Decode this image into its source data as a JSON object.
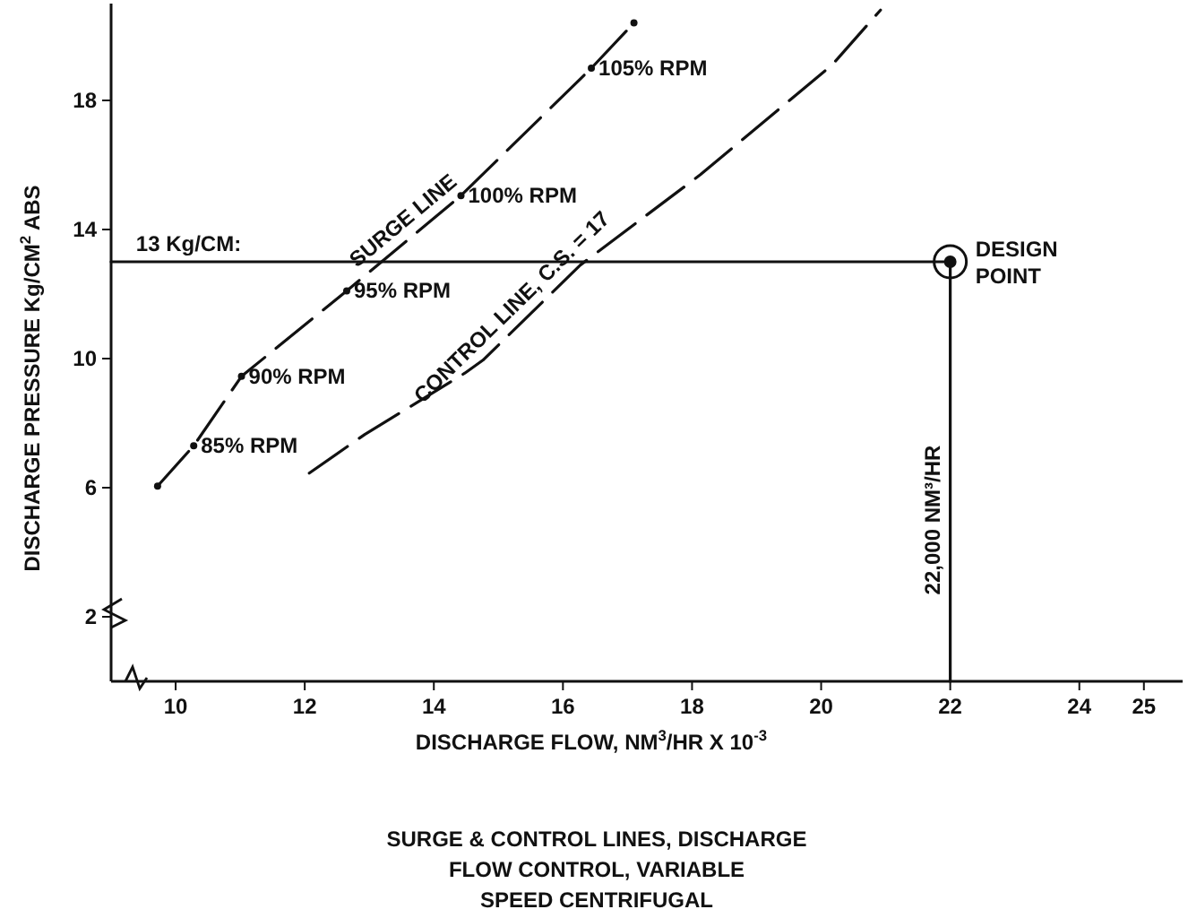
{
  "chart_data": {
    "type": "line",
    "title": "SURGE & CONTROL LINES, DISCHARGE\nFLOW CONTROL, VARIABLE\nSPEED CENTRIFUGAL",
    "xlabel": "DISCHARGE FLOW, NM$^{3}$/HR X 10$^{-3}$",
    "ylabel": "DISCHARGE PRESSURE Kg/CM$^{2}$ ABS",
    "xlim": [
      9,
      25.6
    ],
    "ylim": [
      0,
      21
    ],
    "xticks": [
      10,
      12,
      14,
      16,
      18,
      20,
      22,
      24,
      25
    ],
    "yticks": [
      2,
      6,
      10,
      14,
      18
    ],
    "grid": false,
    "series": [
      {
        "color": "#111111",
        "line_style": "dashed",
        "marker": "circle",
        "x": [
          9.72,
          10.28,
          11.02,
          12.65,
          14.42,
          16.44,
          17.1
        ],
        "values": [
          6.05,
          7.3,
          9.45,
          12.1,
          15.05,
          19.0,
          20.4
        ]
      },
      {
        "color": "#111111",
        "line_style": "dashed",
        "marker": "none",
        "x": [
          12.07,
          12.93,
          14.48,
          14.76,
          16.27,
          18.13,
          20.17,
          20.92
        ],
        "values": [
          6.45,
          7.65,
          9.55,
          9.95,
          12.9,
          15.7,
          19.1,
          20.8
        ]
      },
      {
        "color": "#111111",
        "line_style": "solid",
        "marker": "none",
        "x": [
          9,
          22,
          22
        ],
        "values": [
          13,
          13,
          0
        ]
      },
      {
        "type": "scatter",
        "color": "#111111",
        "marker": "circle",
        "x": [
          22
        ],
        "values": [
          13
        ]
      }
    ],
    "annotations": [
      {
        "text": "85% RPM",
        "x": 10.28,
        "y": 7.3
      },
      {
        "text": "90% RPM",
        "x": 11.02,
        "y": 9.45
      },
      {
        "text": "95% RPM",
        "x": 12.65,
        "y": 12.1
      },
      {
        "text": "100% RPM",
        "x": 14.42,
        "y": 15.05
      },
      {
        "text": "105% RPM",
        "x": 16.44,
        "y": 19.0
      },
      {
        "text": "SURGE LINE",
        "x": 13.7,
        "y": 13.85
      },
      {
        "text": "CONTROL LINE, C.S. = 17",
        "x": 15.4,
        "y": 11.2
      },
      {
        "text": "13 Kg/CM:",
        "x": 10.2,
        "y": 13
      },
      {
        "text": "DESIGN\nPOINT",
        "x": 22,
        "y": 13
      },
      {
        "text": "22,000 NM³/HR",
        "x": 22,
        "y": 5.0
      }
    ]
  }
}
